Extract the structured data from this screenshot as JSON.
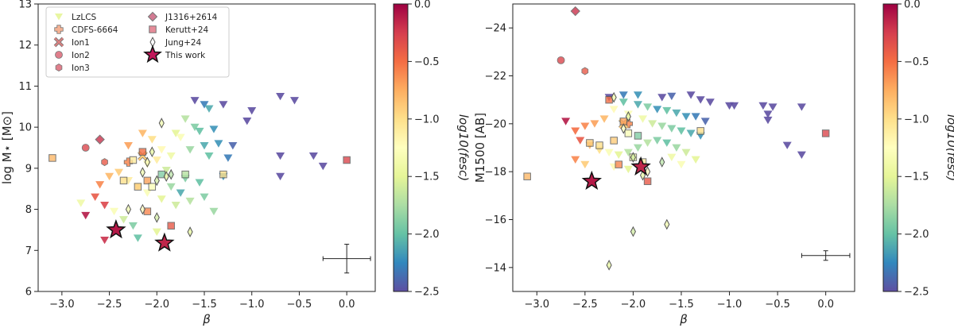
{
  "chart_data": [
    {
      "type": "scatter",
      "title": "",
      "xlabel": "β",
      "ylabel": "log M⋆ [M⊙]",
      "xlim": [
        -3.25,
        0.3
      ],
      "ylim": [
        6,
        13
      ],
      "xticks": [
        "−3.0",
        "−2.5",
        "−2.0",
        "−1.5",
        "−1.0",
        "−0.5",
        "0.0"
      ],
      "yticks": [
        "6",
        "7",
        "8",
        "9",
        "10",
        "11",
        "12",
        "13"
      ],
      "errorbar": {
        "x": 0.0,
        "y": 6.8,
        "xerr": 0.25,
        "yerr": 0.35
      },
      "series": [
        {
          "name": "LzLCS",
          "marker": "triangle-down",
          "points": [
            [
              -1.6,
              10.65,
              -2.5
            ],
            [
              -1.5,
              10.55,
              -2.3
            ],
            [
              -1.45,
              10.45,
              -2.1
            ],
            [
              -1.3,
              10.55,
              -2.5
            ],
            [
              -1.05,
              10.15,
              -2.5
            ],
            [
              -1.0,
              10.4,
              -2.5
            ],
            [
              -0.7,
              10.75,
              -2.5
            ],
            [
              -0.55,
              10.65,
              -2.5
            ],
            [
              -0.7,
              9.3,
              -2.5
            ],
            [
              -0.35,
              9.3,
              -2.5
            ],
            [
              -0.25,
              9.05,
              -2.5
            ],
            [
              -0.7,
              8.8,
              -2.5
            ],
            [
              -1.7,
              10.2,
              -1.7
            ],
            [
              -1.6,
              10.0,
              -1.9
            ],
            [
              -1.55,
              9.9,
              -2.0
            ],
            [
              -1.4,
              9.95,
              -2.2
            ],
            [
              -1.8,
              9.85,
              -1.5
            ],
            [
              -1.75,
              9.75,
              -1.3
            ],
            [
              -1.5,
              9.55,
              -2.1
            ],
            [
              -1.35,
              9.6,
              -2.2
            ],
            [
              -1.2,
              9.55,
              -2.4
            ],
            [
              -1.65,
              9.45,
              -1.8
            ],
            [
              -1.45,
              9.3,
              -2.0
            ],
            [
              -1.25,
              9.25,
              -2.3
            ],
            [
              -1.85,
              9.3,
              -1.4
            ],
            [
              -1.95,
              9.45,
              -1.2
            ],
            [
              -2.05,
              9.7,
              -1.0
            ],
            [
              -2.15,
              9.85,
              -0.8
            ],
            [
              -1.9,
              8.95,
              -1.6
            ],
            [
              -1.7,
              8.75,
              -1.9
            ],
            [
              -1.55,
              8.65,
              -2.0
            ],
            [
              -1.3,
              8.8,
              -2.2
            ],
            [
              -1.5,
              8.3,
              -1.9
            ],
            [
              -1.65,
              8.2,
              -1.7
            ],
            [
              -1.8,
              8.1,
              -1.6
            ],
            [
              -1.95,
              8.25,
              -1.5
            ],
            [
              -1.4,
              7.95,
              -1.8
            ],
            [
              -2.1,
              8.4,
              -1.3
            ],
            [
              -2.2,
              8.55,
              -1.2
            ],
            [
              -2.3,
              8.7,
              -1.1
            ],
            [
              -2.4,
              8.9,
              -0.9
            ],
            [
              -2.5,
              8.8,
              -0.8
            ],
            [
              -2.6,
              8.6,
              -0.6
            ],
            [
              -2.65,
              8.3,
              -0.4
            ],
            [
              -2.55,
              8.1,
              -0.3
            ],
            [
              -2.45,
              7.95,
              -1.3
            ],
            [
              -2.35,
              7.75,
              -1.6
            ],
            [
              -2.25,
              7.6,
              -1.9
            ],
            [
              -2.2,
              7.3,
              -2.0
            ],
            [
              -2.0,
              7.45,
              -1.5
            ],
            [
              -2.55,
              7.25,
              -0.2
            ],
            [
              -2.75,
              7.85,
              -0.1
            ],
            [
              -2.8,
              8.15,
              -1.4
            ],
            [
              -2.1,
              9.1,
              -1.2
            ],
            [
              -2.0,
              9.2,
              -1.1
            ],
            [
              -1.85,
              8.55,
              -1.8
            ],
            [
              -1.75,
              8.4,
              -2.1
            ],
            [
              -2.3,
              9.55,
              -0.7
            ]
          ]
        },
        {
          "name": "CDFS-6664",
          "marker": "plus",
          "points": [
            [
              -2.3,
              9.15,
              -0.6
            ]
          ]
        },
        {
          "name": "Ion1",
          "marker": "cross",
          "points": [
            [
              -2.15,
              9.3,
              -0.9
            ]
          ]
        },
        {
          "name": "Ion2",
          "marker": "circle",
          "points": [
            [
              -2.75,
              9.5,
              -0.3
            ]
          ]
        },
        {
          "name": "Ion3",
          "marker": "hexagon",
          "points": [
            [
              -2.55,
              9.15,
              -0.4
            ]
          ]
        },
        {
          "name": "J1316+2614",
          "marker": "diamond",
          "points": [
            [
              -2.6,
              9.7,
              -0.2
            ]
          ]
        },
        {
          "name": "Kerutt+24",
          "marker": "square",
          "points": [
            [
              -3.1,
              9.25,
              -0.8
            ],
            [
              -2.35,
              8.7,
              -1.0
            ],
            [
              -2.2,
              8.55,
              -0.9
            ],
            [
              -2.1,
              8.7,
              -0.7
            ],
            [
              -2.05,
              8.55,
              -1.3
            ],
            [
              -1.95,
              8.85,
              -1.9
            ],
            [
              -2.15,
              9.4,
              -0.5
            ],
            [
              -2.25,
              9.2,
              -1.1
            ],
            [
              -1.7,
              8.85,
              -1.7
            ],
            [
              -1.3,
              8.85,
              -1.0
            ],
            [
              0.0,
              9.2,
              -0.3
            ],
            [
              -2.1,
              7.95,
              -0.6
            ],
            [
              -1.85,
              7.6,
              -0.4
            ]
          ]
        },
        {
          "name": "Jung+24",
          "marker": "thin-diamond",
          "points": [
            [
              -1.95,
              10.1,
              -1.4
            ],
            [
              -2.05,
              9.4,
              -1.5
            ],
            [
              -2.1,
              9.15,
              -1.3
            ],
            [
              -2.15,
              8.9,
              -1.4
            ],
            [
              -2.0,
              8.7,
              -1.6
            ],
            [
              -1.9,
              8.8,
              -1.5
            ],
            [
              -1.85,
              8.85,
              -1.7
            ],
            [
              -2.3,
              8.0,
              -1.4
            ],
            [
              -2.15,
              8.0,
              -1.2
            ],
            [
              -2.0,
              7.8,
              -1.6
            ],
            [
              -1.65,
              7.45,
              -1.5
            ]
          ]
        },
        {
          "name": "This work",
          "marker": "star",
          "points": [
            [
              -2.43,
              7.5,
              -0.1
            ],
            [
              -1.92,
              7.18,
              -0.15
            ]
          ]
        }
      ]
    },
    {
      "type": "scatter",
      "title": "",
      "xlabel": "β",
      "ylabel": "M1500 [AB]",
      "xlim": [
        -3.25,
        0.3
      ],
      "ylim": [
        -13,
        -25
      ],
      "xticks": [
        "−3.0",
        "−2.5",
        "−2.0",
        "−1.5",
        "−1.0",
        "−0.5",
        "0.0"
      ],
      "yticks": [
        "−24",
        "−22",
        "−20",
        "−18",
        "−16",
        "−14"
      ],
      "errorbar": {
        "x": 0.0,
        "y": -14.5,
        "xerr": 0.25,
        "yerr": 0.2
      },
      "series": [
        {
          "name": "LzLCS",
          "marker": "triangle-down",
          "points": [
            [
              -2.25,
              -21.1,
              -2.5
            ],
            [
              -2.1,
              -21.2,
              -2.3
            ],
            [
              -1.95,
              -21.2,
              -2.2
            ],
            [
              -1.7,
              -21.1,
              -2.5
            ],
            [
              -1.6,
              -21.15,
              -2.4
            ],
            [
              -1.4,
              -21.2,
              -2.5
            ],
            [
              -1.3,
              -21.0,
              -2.5
            ],
            [
              -1.2,
              -20.9,
              -2.5
            ],
            [
              -1.0,
              -20.75,
              -2.5
            ],
            [
              -0.95,
              -20.75,
              -2.5
            ],
            [
              -0.65,
              -20.75,
              -2.5
            ],
            [
              -0.55,
              -20.7,
              -2.5
            ],
            [
              -0.25,
              -20.7,
              -2.5
            ],
            [
              -0.6,
              -20.4,
              -2.5
            ],
            [
              -0.6,
              -20.15,
              -2.5
            ],
            [
              -0.4,
              -19.1,
              -2.5
            ],
            [
              -0.25,
              -18.7,
              -2.5
            ],
            [
              -2.1,
              -20.9,
              -2.0
            ],
            [
              -1.95,
              -20.8,
              -2.1
            ],
            [
              -1.85,
              -20.7,
              -1.9
            ],
            [
              -1.75,
              -20.6,
              -2.2
            ],
            [
              -1.65,
              -20.55,
              -2.0
            ],
            [
              -1.55,
              -20.45,
              -2.1
            ],
            [
              -1.45,
              -20.3,
              -2.2
            ],
            [
              -1.35,
              -20.3,
              -2.3
            ],
            [
              -1.25,
              -20.1,
              -2.4
            ],
            [
              -2.2,
              -20.6,
              -1.2
            ],
            [
              -2.05,
              -20.4,
              -1.3
            ],
            [
              -1.9,
              -20.2,
              -1.4
            ],
            [
              -1.8,
              -20.0,
              -1.6
            ],
            [
              -1.7,
              -19.9,
              -1.8
            ],
            [
              -1.6,
              -19.8,
              -1.9
            ],
            [
              -1.5,
              -19.7,
              -2.0
            ],
            [
              -1.4,
              -19.6,
              -2.1
            ],
            [
              -1.3,
              -19.5,
              -2.2
            ],
            [
              -2.3,
              -20.2,
              -0.8
            ],
            [
              -2.4,
              -20.0,
              -0.7
            ],
            [
              -2.5,
              -19.9,
              -0.6
            ],
            [
              -2.6,
              -19.7,
              -0.5
            ],
            [
              -2.7,
              -20.1,
              -0.1
            ],
            [
              -2.55,
              -19.3,
              -0.4
            ],
            [
              -2.45,
              -19.1,
              -0.8
            ],
            [
              -2.35,
              -18.9,
              -1.0
            ],
            [
              -2.25,
              -18.8,
              -1.3
            ],
            [
              -2.15,
              -18.7,
              -1.5
            ],
            [
              -2.05,
              -18.8,
              -1.7
            ],
            [
              -1.95,
              -19.0,
              -1.8
            ],
            [
              -1.85,
              -19.2,
              -1.7
            ],
            [
              -1.75,
              -19.3,
              -1.9
            ],
            [
              -1.65,
              -19.2,
              -2.0
            ],
            [
              -1.55,
              -19.0,
              -1.8
            ],
            [
              -1.45,
              -18.8,
              -1.6
            ],
            [
              -1.35,
              -18.5,
              -1.5
            ],
            [
              -2.6,
              -18.5,
              -0.6
            ],
            [
              -2.5,
              -18.3,
              -0.9
            ],
            [
              -2.2,
              -18.2,
              -1.2
            ],
            [
              -2.05,
              -18.1,
              -1.5
            ],
            [
              -1.6,
              -18.6,
              -1.4
            ],
            [
              -1.5,
              -18.3,
              -1.3
            ]
          ]
        },
        {
          "name": "CDFS-6664",
          "marker": "plus",
          "points": [
            [
              -2.05,
              -20.0,
              -0.6
            ]
          ]
        },
        {
          "name": "Ion1",
          "marker": "cross",
          "points": [
            [
              -2.1,
              -20.0,
              -0.9
            ]
          ]
        },
        {
          "name": "Ion2",
          "marker": "circle",
          "points": [
            [
              -2.75,
              -22.65,
              -0.3
            ]
          ]
        },
        {
          "name": "Ion3",
          "marker": "hexagon",
          "points": [
            [
              -2.5,
              -22.2,
              -0.4
            ]
          ]
        },
        {
          "name": "J1316+2614",
          "marker": "diamond",
          "points": [
            [
              -2.6,
              -24.7,
              -0.2
            ]
          ]
        },
        {
          "name": "Kerutt+24",
          "marker": "square",
          "points": [
            [
              -3.1,
              -17.8,
              -0.8
            ],
            [
              -2.35,
              -19.1,
              -1.0
            ],
            [
              -2.2,
              -19.3,
              -0.9
            ],
            [
              -2.1,
              -20.1,
              -0.7
            ],
            [
              -2.25,
              -21.0,
              -0.5
            ],
            [
              -2.05,
              -19.6,
              -1.3
            ],
            [
              -1.95,
              -19.5,
              -1.9
            ],
            [
              -2.0,
              -18.6,
              -1.4
            ],
            [
              -2.15,
              -18.3,
              -0.6
            ],
            [
              -1.85,
              -17.6,
              -0.4
            ],
            [
              -1.3,
              -19.7,
              -1.0
            ],
            [
              0.0,
              -19.6,
              -0.3
            ],
            [
              -2.45,
              -19.2,
              -0.9
            ],
            [
              -1.9,
              -18.4,
              -1.1
            ]
          ]
        },
        {
          "name": "Jung+24",
          "marker": "thin-diamond",
          "points": [
            [
              -2.2,
              -21.1,
              -1.4
            ],
            [
              -2.05,
              -20.3,
              -1.5
            ],
            [
              -2.1,
              -19.8,
              -1.3
            ],
            [
              -2.0,
              -18.6,
              -1.6
            ],
            [
              -1.9,
              -17.85,
              -1.5
            ],
            [
              -1.7,
              -18.4,
              -1.7
            ],
            [
              -2.0,
              -15.5,
              -1.6
            ],
            [
              -1.65,
              -15.8,
              -1.4
            ],
            [
              -2.25,
              -14.1,
              -1.5
            ],
            [
              -1.85,
              -18.0,
              -1.2
            ]
          ]
        },
        {
          "name": "This work",
          "marker": "star",
          "points": [
            [
              -2.43,
              -17.6,
              -0.1
            ],
            [
              -1.92,
              -18.2,
              -0.15
            ]
          ]
        }
      ]
    }
  ],
  "colorbar": {
    "label": "log10(fesc)",
    "min": -2.5,
    "max": 0.0,
    "ticks": [
      "0.0",
      "−0.5",
      "−1.0",
      "−1.5",
      "−2.0",
      "−2.5"
    ]
  },
  "legend_labels": [
    "LzLCS",
    "CDFS-6664",
    "Ion1",
    "Ion2",
    "Ion3",
    "J1316+2614",
    "Kerutt+24",
    "Jung+24",
    "This work"
  ]
}
